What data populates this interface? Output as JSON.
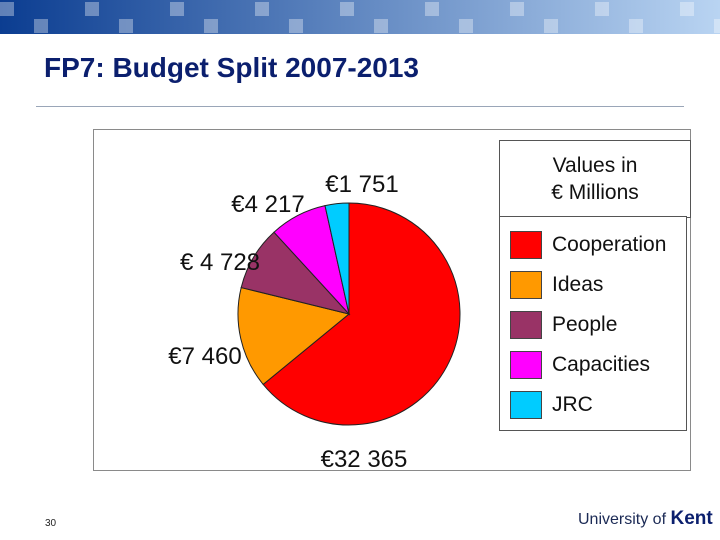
{
  "title": "FP7: Budget Split 2007-2013",
  "colors": {
    "band_start": "#0b3d91",
    "band_end": "#b9d4f2",
    "title": "#0b1f6e"
  },
  "values_box": {
    "line1": "Values in",
    "line2": "€ Millions"
  },
  "chart_data": {
    "type": "pie",
    "title": "",
    "slices": [
      {
        "label": "Cooperation",
        "value": 32365,
        "display": "€32 365",
        "color": "#ff0000"
      },
      {
        "label": "Ideas",
        "value": 7460,
        "display": "€7 460",
        "color": "#ff9900"
      },
      {
        "label": "People",
        "value": 4728,
        "display": "€ 4 728",
        "color": "#993366"
      },
      {
        "label": "Capacities",
        "value": 4217,
        "display": "€4 217",
        "color": "#ff00ff"
      },
      {
        "label": "JRC",
        "value": 1751,
        "display": "€1 751",
        "color": "#00ccff"
      }
    ],
    "legend_position": "right",
    "start_direction": "clockwise from top"
  },
  "footer": {
    "slide_number": "30",
    "logo_prefix": "University of",
    "logo_name": "Kent"
  }
}
